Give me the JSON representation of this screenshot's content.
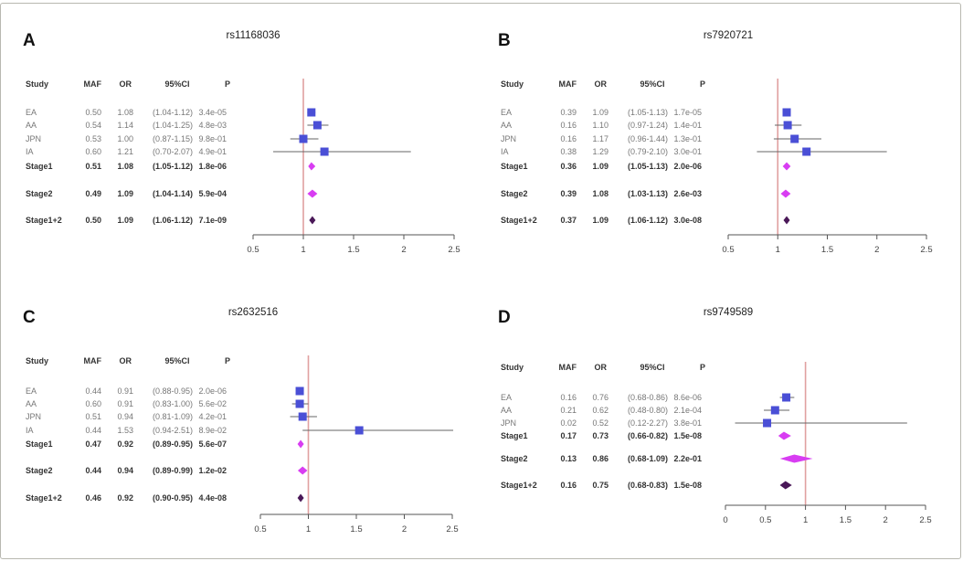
{
  "colors": {
    "study": "#4a4fd6",
    "stage": "#d83df2",
    "combined": "#4a1858",
    "null_line": "#e0a0a0",
    "ci_line": "#666666",
    "axis": "#555555"
  },
  "headers": {
    "study": "Study",
    "maf": "MAF",
    "or": "OR",
    "ci": "95%CI",
    "p": "P"
  },
  "chart_data": [
    {
      "type": "forest",
      "panel": "A",
      "title": "rs11168036",
      "xlabel": "",
      "xlim": [
        0.5,
        2.5
      ],
      "xticks": [
        "0.5",
        "1",
        "1.5",
        "2",
        "2.5"
      ],
      "reference_line": 1,
      "rows": [
        {
          "study": "EA",
          "maf": "0.50",
          "or": "1.08",
          "ci": "(1.04-1.12)",
          "p": "3.4e-05",
          "or_value": 1.08,
          "lo": 1.04,
          "hi": 1.12,
          "kind": "study"
        },
        {
          "study": "AA",
          "maf": "0.54",
          "or": "1.14",
          "ci": "(1.04-1.25)",
          "p": "4.8e-03",
          "or_value": 1.14,
          "lo": 1.04,
          "hi": 1.25,
          "kind": "study"
        },
        {
          "study": "JPN",
          "maf": "0.53",
          "or": "1.00",
          "ci": "(0.87-1.15)",
          "p": "9.8e-01",
          "or_value": 1.0,
          "lo": 0.87,
          "hi": 1.15,
          "kind": "study"
        },
        {
          "study": "IA",
          "maf": "0.60",
          "or": "1.21",
          "ci": "(0.70-2.07)",
          "p": "4.9e-01",
          "or_value": 1.21,
          "lo": 0.7,
          "hi": 2.07,
          "kind": "study"
        },
        {
          "study": "Stage1",
          "maf": "0.51",
          "or": "1.08",
          "ci": "(1.05-1.12)",
          "p": "1.8e-06",
          "or_value": 1.08,
          "lo": 1.05,
          "hi": 1.12,
          "kind": "stage"
        },
        {
          "study": "Stage2",
          "maf": "0.49",
          "or": "1.09",
          "ci": "(1.04-1.14)",
          "p": "5.9e-04",
          "or_value": 1.09,
          "lo": 1.04,
          "hi": 1.14,
          "kind": "stage"
        },
        {
          "study": "Stage1+2",
          "maf": "0.50",
          "or": "1.09",
          "ci": "(1.06-1.12)",
          "p": "7.1e-09",
          "or_value": 1.09,
          "lo": 1.06,
          "hi": 1.12,
          "kind": "combined"
        }
      ]
    },
    {
      "type": "forest",
      "panel": "B",
      "title": "rs7920721",
      "xlabel": "",
      "xlim": [
        0.5,
        2.5
      ],
      "xticks": [
        "0.5",
        "1",
        "1.5",
        "2",
        "2.5"
      ],
      "reference_line": 1,
      "rows": [
        {
          "study": "EA",
          "maf": "0.39",
          "or": "1.09",
          "ci": "(1.05-1.13)",
          "p": "1.7e-05",
          "or_value": 1.09,
          "lo": 1.05,
          "hi": 1.13,
          "kind": "study"
        },
        {
          "study": "AA",
          "maf": "0.16",
          "or": "1.10",
          "ci": "(0.97-1.24)",
          "p": "1.4e-01",
          "or_value": 1.1,
          "lo": 0.97,
          "hi": 1.24,
          "kind": "study"
        },
        {
          "study": "JPN",
          "maf": "0.16",
          "or": "1.17",
          "ci": "(0.96-1.44)",
          "p": "1.3e-01",
          "or_value": 1.17,
          "lo": 0.96,
          "hi": 1.44,
          "kind": "study"
        },
        {
          "study": "IA",
          "maf": "0.38",
          "or": "1.29",
          "ci": "(0.79-2.10)",
          "p": "3.0e-01",
          "or_value": 1.29,
          "lo": 0.79,
          "hi": 2.1,
          "kind": "study"
        },
        {
          "study": "Stage1",
          "maf": "0.36",
          "or": "1.09",
          "ci": "(1.05-1.13)",
          "p": "2.0e-06",
          "or_value": 1.09,
          "lo": 1.05,
          "hi": 1.13,
          "kind": "stage"
        },
        {
          "study": "Stage2",
          "maf": "0.39",
          "or": "1.08",
          "ci": "(1.03-1.13)",
          "p": "2.6e-03",
          "or_value": 1.08,
          "lo": 1.03,
          "hi": 1.13,
          "kind": "stage"
        },
        {
          "study": "Stage1+2",
          "maf": "0.37",
          "or": "1.09",
          "ci": "(1.06-1.12)",
          "p": "3.0e-08",
          "or_value": 1.09,
          "lo": 1.06,
          "hi": 1.12,
          "kind": "combined"
        }
      ]
    },
    {
      "type": "forest",
      "panel": "C",
      "title": "rs2632516",
      "xlabel": "",
      "xlim": [
        0.5,
        2.5
      ],
      "xticks": [
        "0.5",
        "1",
        "1.5",
        "2",
        "2.5"
      ],
      "reference_line": 1,
      "rows": [
        {
          "study": "EA",
          "maf": "0.44",
          "or": "0.91",
          "ci": "(0.88-0.95)",
          "p": "2.0e-06",
          "or_value": 0.91,
          "lo": 0.88,
          "hi": 0.95,
          "kind": "study"
        },
        {
          "study": "AA",
          "maf": "0.60",
          "or": "0.91",
          "ci": "(0.83-1.00)",
          "p": "5.6e-02",
          "or_value": 0.91,
          "lo": 0.83,
          "hi": 1.0,
          "kind": "study"
        },
        {
          "study": "JPN",
          "maf": "0.51",
          "or": "0.94",
          "ci": "(0.81-1.09)",
          "p": "4.2e-01",
          "or_value": 0.94,
          "lo": 0.81,
          "hi": 1.09,
          "kind": "study"
        },
        {
          "study": "IA",
          "maf": "0.44",
          "or": "1.53",
          "ci": "(0.94-2.51)",
          "p": "8.9e-02",
          "or_value": 1.53,
          "lo": 0.94,
          "hi": 2.51,
          "kind": "study"
        },
        {
          "study": "Stage1",
          "maf": "0.47",
          "or": "0.92",
          "ci": "(0.89-0.95)",
          "p": "5.6e-07",
          "or_value": 0.92,
          "lo": 0.89,
          "hi": 0.95,
          "kind": "stage"
        },
        {
          "study": "Stage2",
          "maf": "0.44",
          "or": "0.94",
          "ci": "(0.89-0.99)",
          "p": "1.2e-02",
          "or_value": 0.94,
          "lo": 0.89,
          "hi": 0.99,
          "kind": "stage"
        },
        {
          "study": "Stage1+2",
          "maf": "0.46",
          "or": "0.92",
          "ci": "(0.90-0.95)",
          "p": "4.4e-08",
          "or_value": 0.92,
          "lo": 0.9,
          "hi": 0.95,
          "kind": "combined"
        }
      ]
    },
    {
      "type": "forest",
      "panel": "D",
      "title": "rs9749589",
      "xlabel": "",
      "xlim": [
        0,
        2.5
      ],
      "xticks": [
        "0",
        "0.5",
        "1",
        "1.5",
        "2",
        "2.5"
      ],
      "reference_line": 1,
      "rows": [
        {
          "study": "EA",
          "maf": "0.16",
          "or": "0.76",
          "ci": "(0.68-0.86)",
          "p": "8.6e-06",
          "or_value": 0.76,
          "lo": 0.68,
          "hi": 0.86,
          "kind": "study"
        },
        {
          "study": "AA",
          "maf": "0.21",
          "or": "0.62",
          "ci": "(0.48-0.80)",
          "p": "2.1e-04",
          "or_value": 0.62,
          "lo": 0.48,
          "hi": 0.8,
          "kind": "study"
        },
        {
          "study": "JPN",
          "maf": "0.02",
          "or": "0.52",
          "ci": "(0.12-2.27)",
          "p": "3.8e-01",
          "or_value": 0.52,
          "lo": 0.12,
          "hi": 2.27,
          "kind": "study"
        },
        {
          "study": "Stage1",
          "maf": "0.17",
          "or": "0.73",
          "ci": "(0.66-0.82)",
          "p": "1.5e-08",
          "or_value": 0.73,
          "lo": 0.66,
          "hi": 0.82,
          "kind": "stage"
        },
        {
          "study": "Stage2",
          "maf": "0.13",
          "or": "0.86",
          "ci": "(0.68-1.09)",
          "p": "2.2e-01",
          "or_value": 0.86,
          "lo": 0.68,
          "hi": 1.09,
          "kind": "stage"
        },
        {
          "study": "Stage1+2",
          "maf": "0.16",
          "or": "0.75",
          "ci": "(0.68-0.83)",
          "p": "1.5e-08",
          "or_value": 0.75,
          "lo": 0.68,
          "hi": 0.83,
          "kind": "combined"
        }
      ]
    }
  ]
}
